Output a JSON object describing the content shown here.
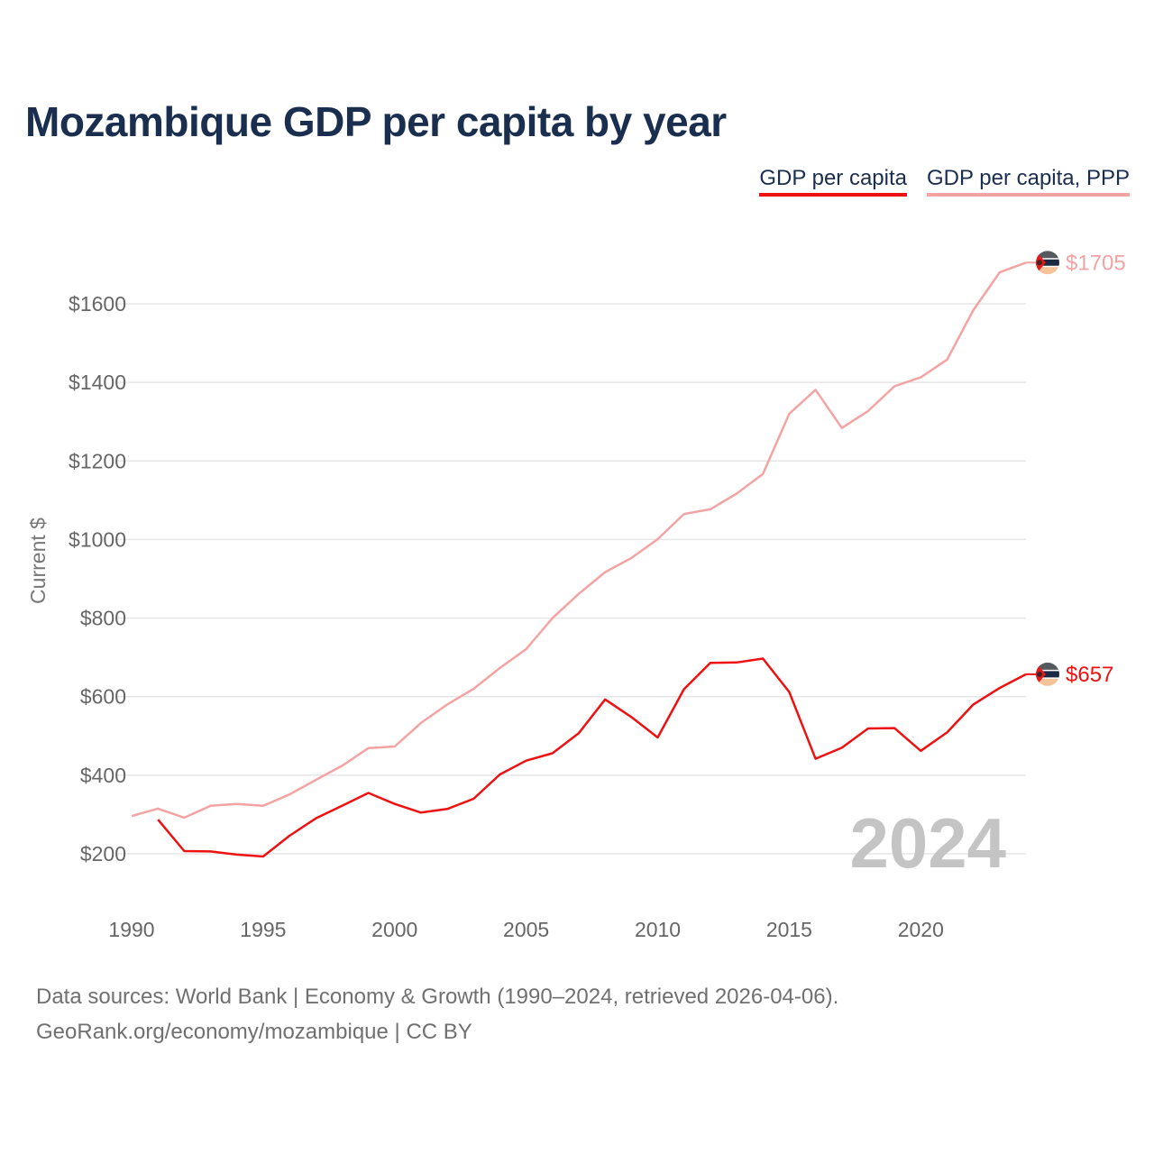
{
  "title": "Mozambique GDP per capita by year",
  "legend": [
    {
      "label": "GDP per capita",
      "color": "#ee1111"
    },
    {
      "label": "GDP per capita, PPP",
      "color": "#f4a3a3"
    }
  ],
  "source": {
    "line1": "Data sources: World Bank | Economy & Growth (1990–2024, retrieved 2026-04-06).",
    "line2": "GeoRank.org/economy/mozambique | CC BY"
  },
  "chart_data": {
    "type": "line",
    "title": "Mozambique GDP per capita by year",
    "xlabel": "",
    "ylabel": "Current $",
    "xlim": [
      1990,
      2024
    ],
    "ylim": [
      100,
      1800
    ],
    "xticks": [
      1990,
      1995,
      2000,
      2005,
      2010,
      2015,
      2020
    ],
    "yticks": [
      200,
      400,
      600,
      800,
      1000,
      1200,
      1400,
      1600
    ],
    "ytick_labels": [
      "$200",
      "$400",
      "$600",
      "$800",
      "$1000",
      "$1200",
      "$1400",
      "$1600"
    ],
    "grid": "horizontal",
    "year_marker": "2024",
    "series": [
      {
        "name": "GDP per capita",
        "color": "#ee1111",
        "end_label": "$657",
        "x": [
          1991,
          1992,
          1993,
          1994,
          1995,
          1996,
          1997,
          1998,
          1999,
          2000,
          2001,
          2002,
          2003,
          2004,
          2005,
          2006,
          2007,
          2008,
          2009,
          2010,
          2011,
          2012,
          2013,
          2014,
          2015,
          2016,
          2017,
          2018,
          2019,
          2020,
          2021,
          2022,
          2023,
          2024
        ],
        "values": [
          287,
          207,
          206,
          198,
          193,
          246,
          290,
          322,
          355,
          327,
          305,
          314,
          340,
          402,
          437,
          456,
          507,
          593,
          548,
          496,
          619,
          686,
          687,
          697,
          612,
          442,
          470,
          519,
          520,
          462,
          509,
          580,
          622,
          657
        ]
      },
      {
        "name": "GDP per capita, PPP",
        "color": "#f4a3a3",
        "end_label": "$1705",
        "x": [
          1990,
          1991,
          1992,
          1993,
          1994,
          1995,
          1996,
          1997,
          1998,
          1999,
          2000,
          2001,
          2002,
          2003,
          2004,
          2005,
          2006,
          2007,
          2008,
          2009,
          2010,
          2011,
          2012,
          2013,
          2014,
          2015,
          2016,
          2017,
          2018,
          2019,
          2020,
          2021,
          2022,
          2023,
          2024
        ],
        "values": [
          296,
          315,
          292,
          322,
          327,
          322,
          351,
          388,
          424,
          469,
          473,
          533,
          580,
          620,
          673,
          721,
          800,
          862,
          917,
          953,
          1001,
          1065,
          1077,
          1117,
          1167,
          1320,
          1381,
          1284,
          1327,
          1390,
          1413,
          1458,
          1584,
          1680,
          1705
        ]
      }
    ]
  }
}
